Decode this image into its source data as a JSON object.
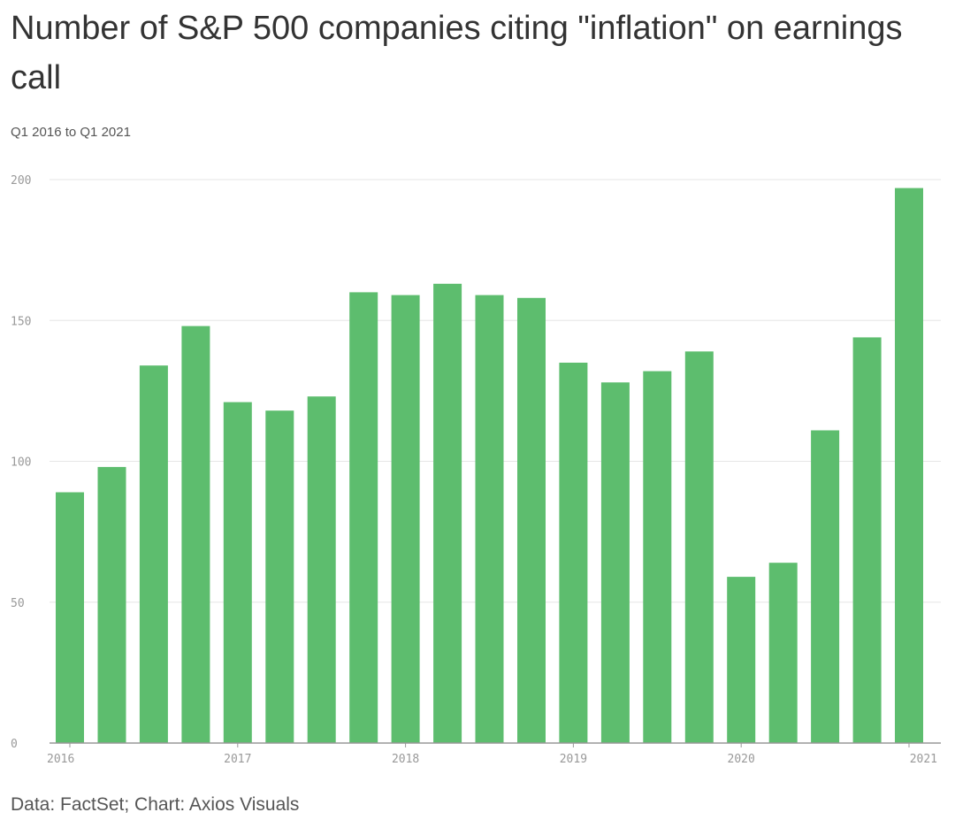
{
  "title": "Number of S&P 500 companies citing \"inflation\" on earnings call",
  "subtitle": "Q1 2016 to Q1 2021",
  "source": "Data: FactSet; Chart: Axios Visuals",
  "colors": {
    "bar": "#5dbd6e",
    "grid": "#e6e6e6",
    "axis": "#999999"
  },
  "chart_data": {
    "type": "bar",
    "title": "Number of S&P 500 companies citing \"inflation\" on earnings call",
    "subtitle": "Q1 2016 to Q1 2021",
    "categories": [
      "Q1 2016",
      "Q2 2016",
      "Q3 2016",
      "Q4 2016",
      "Q1 2017",
      "Q2 2017",
      "Q3 2017",
      "Q4 2017",
      "Q1 2018",
      "Q2 2018",
      "Q3 2018",
      "Q4 2018",
      "Q1 2019",
      "Q2 2019",
      "Q3 2019",
      "Q4 2019",
      "Q1 2020",
      "Q2 2020",
      "Q3 2020",
      "Q4 2020",
      "Q1 2021"
    ],
    "values": [
      89,
      98,
      134,
      148,
      121,
      118,
      123,
      160,
      159,
      163,
      159,
      158,
      135,
      128,
      132,
      139,
      59,
      64,
      111,
      144,
      197
    ],
    "x_tick_labels": [
      "2016",
      "2017",
      "2018",
      "2019",
      "2020",
      "2021"
    ],
    "y_ticks": [
      0,
      50,
      100,
      150,
      200
    ],
    "ylim": [
      0,
      200
    ],
    "xlabel": "",
    "ylabel": "",
    "grid": true
  }
}
